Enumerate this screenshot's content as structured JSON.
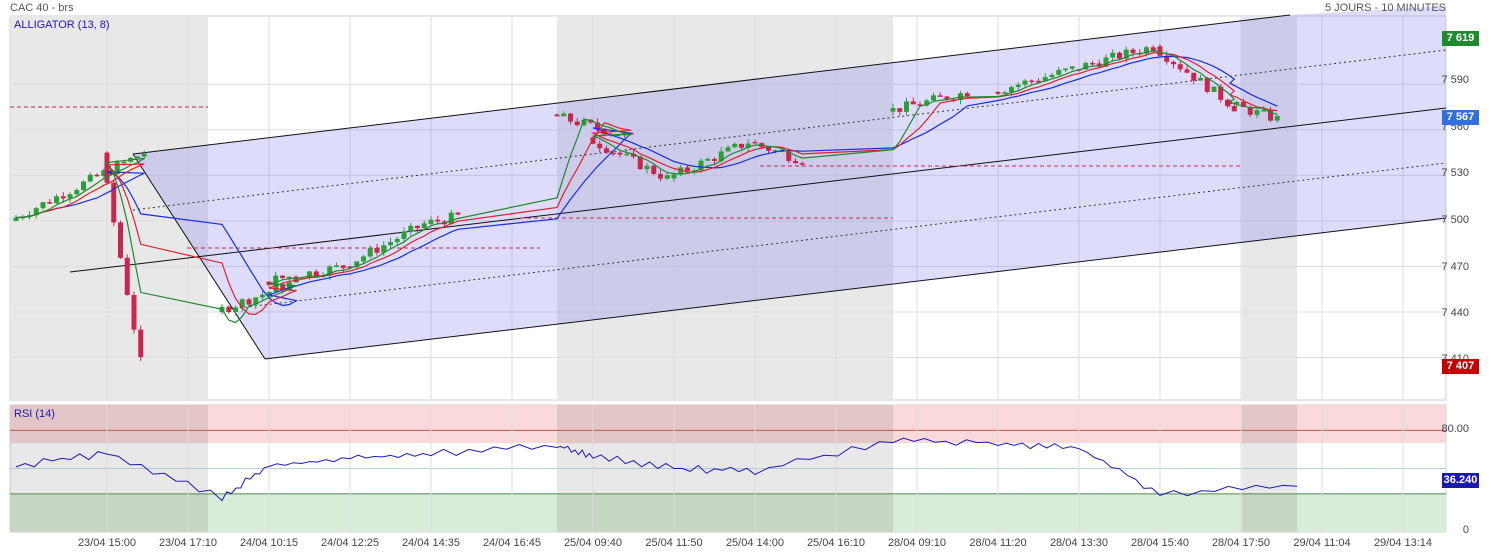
{
  "header": {
    "instrument": "CAC 40 - brs",
    "period": "5 JOURS - 10 MINUTES"
  },
  "indicators": {
    "alligator_label": "ALLIGATOR (13, 8)",
    "rsi_label": "RSI (14)"
  },
  "price_axis": {
    "ticks": [
      "7 590",
      "7 560",
      "7 530",
      "7 500",
      "7 470",
      "7 440",
      "7 410"
    ],
    "tag_high": "7 619",
    "tag_last": "7 567",
    "tag_low": "7 407"
  },
  "rsi_axis": {
    "ticks": [
      "80.00",
      "0"
    ],
    "tag_value": "36.240"
  },
  "time_axis": [
    "23/04 15:00",
    "23/04 17:10",
    "24/04 10:15",
    "24/04 12:25",
    "24/04 14:35",
    "24/04 16:45",
    "25/04 09:40",
    "25/04 11:50",
    "25/04 14:00",
    "25/04 16:10",
    "28/04 09:10",
    "28/04 11:20",
    "28/04 13:30",
    "28/04 15:40",
    "28/04 17:50",
    "29/04 11:04",
    "29/04 13:14"
  ],
  "colors": {
    "up": "#2e9e3a",
    "down": "#c8264a",
    "jaw": "#1a2ee0",
    "teeth": "#e0202a",
    "lips": "#1f8a2e",
    "channel": "#d9dbfb",
    "tag_high": "#1f8a2e",
    "tag_last": "#2f6fe0",
    "tag_low": "#c40000",
    "rsi": "#1a1ab3"
  },
  "chart_data": [
    {
      "type": "candlestick",
      "title": "CAC 40 - brs",
      "subtitle": "5 JOURS - 10 MINUTES",
      "y_ticks": [
        7410,
        7440,
        7470,
        7500,
        7530,
        7560,
        7590
      ],
      "ylim": [
        7382,
        7635
      ],
      "current_price": 7567,
      "period_high": 7619,
      "period_low": 7407,
      "grid": true,
      "overlays": [
        "alligator",
        "regression channel"
      ],
      "segments": [
        {
          "start_time": "23/04 15:00",
          "start_price": 7500,
          "end_price": 7545,
          "bars": 20,
          "style": "up"
        },
        {
          "start_time": "23/04 17:10",
          "start_price": 7545,
          "end_price": 7407,
          "bars": 6,
          "style": "down"
        },
        {
          "start_time": "24/04 10:15",
          "start_price": 7440,
          "end_price": 7460,
          "bars": 12,
          "style": "up"
        },
        {
          "start_time": "24/04 12:25",
          "start_price": 7460,
          "end_price": 7470,
          "bars": 12,
          "style": "mixed"
        },
        {
          "start_time": "24/04 14:35",
          "start_price": 7470,
          "end_price": 7498,
          "bars": 12,
          "style": "up"
        },
        {
          "start_time": "24/04 16:45",
          "start_price": 7498,
          "end_price": 7503,
          "bars": 5,
          "style": "up"
        },
        {
          "start_time": "25/04 09:40",
          "start_price": 7570,
          "end_price": 7555,
          "bars": 12,
          "style": "mixed"
        },
        {
          "start_time": "25/04 11:50",
          "start_price": 7555,
          "end_price": 7528,
          "bars": 12,
          "style": "down"
        },
        {
          "start_time": "25/04 14:00",
          "start_price": 7528,
          "end_price": 7552,
          "bars": 12,
          "style": "up"
        },
        {
          "start_time": "25/04 16:10",
          "start_price": 7552,
          "end_price": 7540,
          "bars": 8,
          "style": "mixed"
        },
        {
          "start_time": "28/04 09:10",
          "start_price": 7572,
          "end_price": 7585,
          "bars": 12,
          "style": "up"
        },
        {
          "start_time": "28/04 11:20",
          "start_price": 7585,
          "end_price": 7600,
          "bars": 12,
          "style": "mixed"
        },
        {
          "start_time": "28/04 13:30",
          "start_price": 7600,
          "end_price": 7615,
          "bars": 12,
          "style": "up"
        },
        {
          "start_time": "28/04 15:40",
          "start_price": 7615,
          "end_price": 7575,
          "bars": 12,
          "style": "down"
        },
        {
          "start_time": "28/04 17:50",
          "start_price": 7578,
          "end_price": 7567,
          "bars": 8,
          "style": "mixed"
        }
      ]
    },
    {
      "type": "line",
      "title": "RSI (14)",
      "y_ticks": [
        0,
        80
      ],
      "ylim": [
        0,
        100
      ],
      "overbought": 70,
      "oversold": 30,
      "last_value": 36.24,
      "x": [
        "23/04 15:00",
        "23/04 17:10",
        "24/04 10:15",
        "24/04 12:25",
        "24/04 14:35",
        "24/04 16:45",
        "25/04 09:40",
        "25/04 11:50",
        "25/04 14:00",
        "25/04 16:10",
        "28/04 09:10",
        "28/04 11:20",
        "28/04 13:30",
        "28/04 15:40",
        "28/04 17:50"
      ],
      "values": [
        52,
        62,
        27,
        52,
        58,
        62,
        68,
        60,
        50,
        48,
        72,
        70,
        66,
        30,
        36
      ]
    }
  ]
}
